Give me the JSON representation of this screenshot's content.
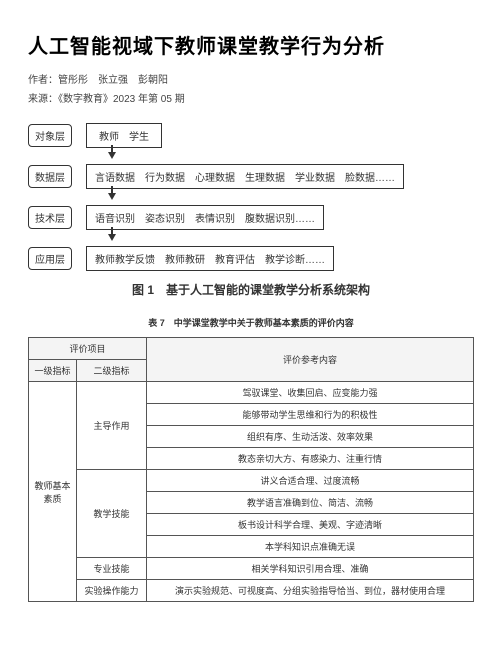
{
  "title": "人工智能视域下教师课堂教学行为分析",
  "authors_label": "作者：",
  "authors": "管彤彤　张立强　彭朝阳",
  "source_label": "来源：",
  "source": "《数字教育》2023 年第 05 期",
  "diagram": {
    "layers": [
      {
        "label": "对象层",
        "content": "教师　学生"
      },
      {
        "label": "数据层",
        "content": "言语数据　行为数据　心理数据　生理数据　学业数据　脸数据……"
      },
      {
        "label": "技术层",
        "content": "语音识别　姿态识别　表情识别　腹数据识别……"
      },
      {
        "label": "应用层",
        "content": "教师教学反馈　教师教研　教育评估　教学诊断……"
      }
    ],
    "caption": "图 1　基于人工智能的课堂教学分析系统架构"
  },
  "table": {
    "caption": "表 7　中学课堂教学中关于教师基本素质的评价内容",
    "header_group": "评价项目",
    "header_l1": "一级指标",
    "header_l2": "二级指标",
    "header_ref": "评价参考内容",
    "l1": "教师基本素质",
    "groups": [
      {
        "l2": "主导作用",
        "rows": [
          "驾驭课堂、收集回启、应变能力强",
          "能够带动学生思维和行为的积极性",
          "组织有序、生动活泼、效率效果",
          "教态亲切大方、有感染力、注重行情"
        ]
      },
      {
        "l2": "教学技能",
        "rows": [
          "讲义合适合理、过度流畅",
          "教学语言准确到位、简洁、流畅",
          "板书设计科学合理、美观、字迹清晰",
          "本学科知识点准确无误"
        ]
      },
      {
        "l2": "专业技能",
        "rows": [
          "相关学科知识引用合理、准确"
        ]
      },
      {
        "l2": "实验操作能力",
        "rows": [
          "演示实验规范、可视度高、分组实验指导恰当、到位，器材使用合理"
        ]
      }
    ]
  }
}
